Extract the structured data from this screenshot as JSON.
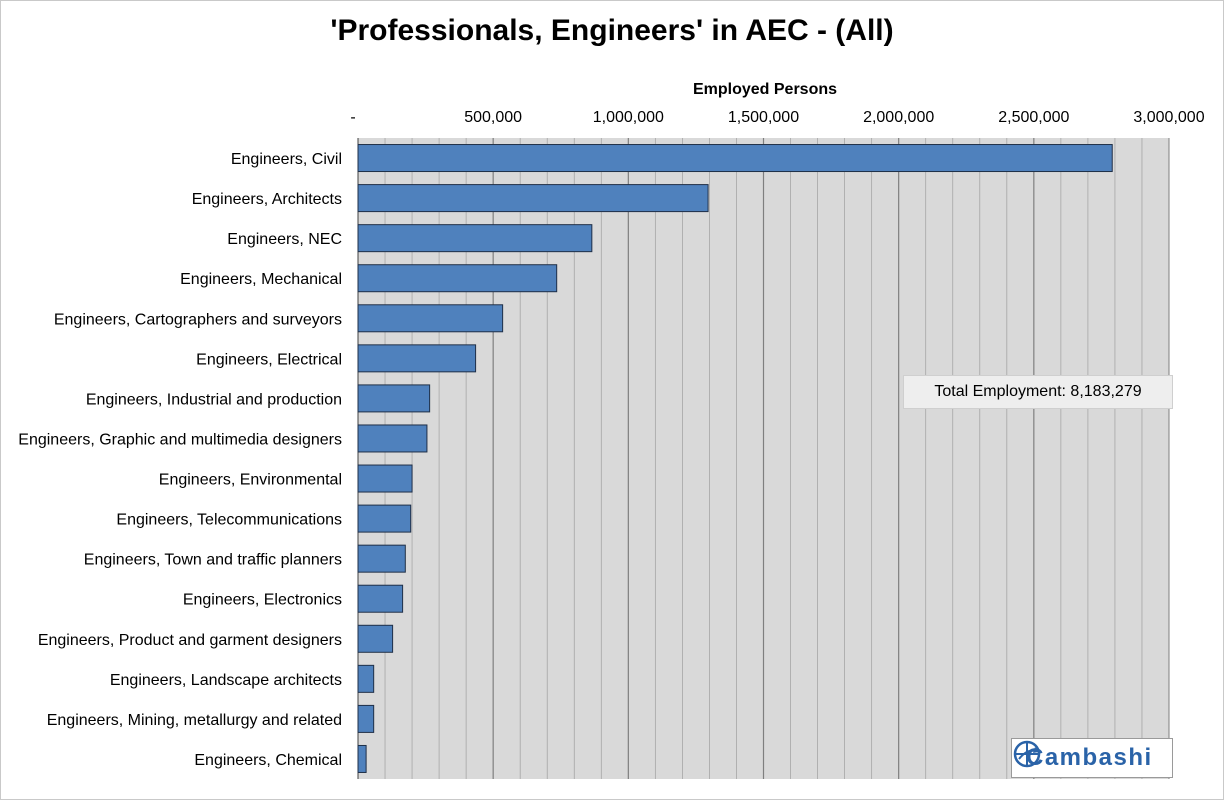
{
  "chart_data": {
    "type": "bar",
    "orientation": "horizontal",
    "title": "'Professionals, Engineers' in AEC - (All)",
    "xlabel": "Employed Persons",
    "ylabel": "",
    "xlim": [
      0,
      3000000
    ],
    "tick_values": [
      0,
      500000,
      1000000,
      1500000,
      2000000,
      2500000,
      3000000
    ],
    "tick_labels": [
      "-",
      "500,000",
      "1,000,000",
      "1,500,000",
      "2,000,000",
      "2,500,000",
      "3,000,000"
    ],
    "x_axis_position": "top",
    "grid": true,
    "bar_color": "#4f81bd",
    "plot_background": "#d9d9d9",
    "categories": [
      "Engineers, Civil",
      "Engineers, Architects",
      "Engineers, NEC",
      "Engineers, Mechanical",
      "Engineers, Cartographers and surveyors",
      "Engineers, Electrical",
      "Engineers, Industrial and production",
      "Engineers, Graphic and multimedia designers",
      "Engineers, Environmental",
      "Engineers, Telecommunications",
      "Engineers, Town and traffic planners",
      "Engineers, Electronics",
      "Engineers, Product and garment designers",
      "Engineers, Landscape architects",
      "Engineers, Mining, metallurgy and related",
      "Engineers, Chemical"
    ],
    "values": [
      2790000,
      1295000,
      865000,
      735000,
      535000,
      435000,
      265000,
      255000,
      200000,
      195000,
      175000,
      165000,
      128000,
      58000,
      58000,
      30000
    ],
    "annotation": "Total Employment: 8,183,279"
  },
  "logo": {
    "text": "Cambashi",
    "icon": "globe-arrows-icon"
  }
}
